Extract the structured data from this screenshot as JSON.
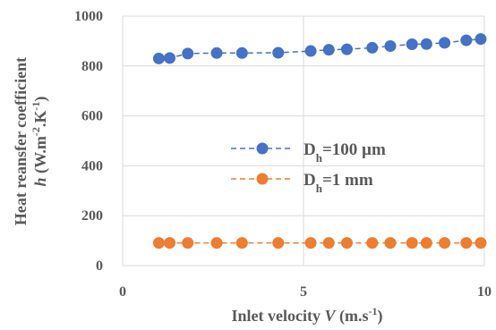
{
  "chart_data": {
    "type": "scatter",
    "xlabel": {
      "prefix": "Inlet velocity ",
      "var": "V",
      "unit_pre": " (m.s",
      "unit_sup": "-1",
      "unit_post": ")"
    },
    "ylabel": {
      "line1": "Heat reansfer coefficient",
      "var": "h",
      "unit_pre": " (W.m",
      "sup1": "-2",
      "unit_mid": ".K",
      "sup2": "-1",
      "unit_post": ")"
    },
    "xlim": [
      0,
      10
    ],
    "ylim": [
      0,
      1000
    ],
    "x_ticks": [
      0,
      5,
      10
    ],
    "y_ticks": [
      0,
      200,
      400,
      600,
      800,
      1000
    ],
    "grid": "vertical and horizontal major gridlines",
    "legend_position": "center",
    "series": [
      {
        "name_main": "D",
        "name_sub": "h",
        "name_rest": "=100 µm",
        "color": "#4472C4",
        "line_style": "dashed",
        "x": [
          1.0,
          1.3,
          1.8,
          2.6,
          3.3,
          4.3,
          5.2,
          5.7,
          6.2,
          6.9,
          7.4,
          8.0,
          8.4,
          8.9,
          9.5,
          9.9
        ],
        "y": [
          830,
          832,
          850,
          852,
          852,
          853,
          860,
          865,
          867,
          873,
          880,
          887,
          888,
          893,
          903,
          908
        ]
      },
      {
        "name_main": "D",
        "name_sub": "h",
        "name_rest": "=1 mm",
        "color": "#ED7D31",
        "line_style": "dashed",
        "x": [
          1.0,
          1.3,
          1.8,
          2.6,
          3.3,
          4.3,
          5.2,
          5.7,
          6.2,
          6.9,
          7.4,
          8.0,
          8.4,
          8.9,
          9.5,
          9.9
        ],
        "y": [
          91,
          91,
          91,
          91,
          91,
          91,
          91,
          91,
          91,
          91,
          91,
          91,
          91,
          91,
          91,
          91
        ]
      }
    ]
  }
}
